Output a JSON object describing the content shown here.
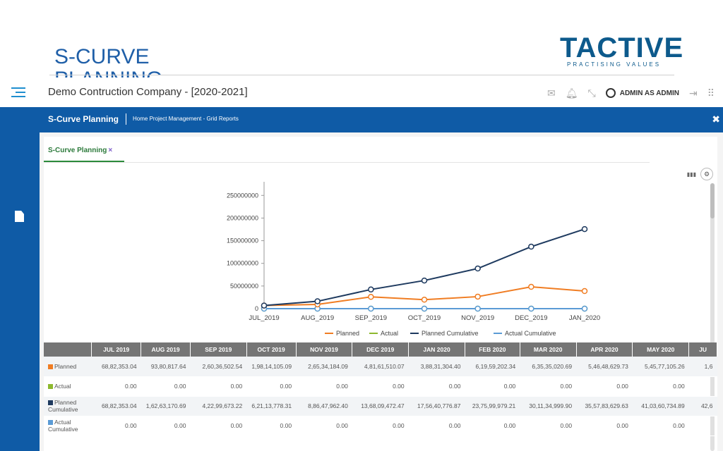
{
  "slide": {
    "title": "S-CURVE",
    "title_overflow": "PLANNING",
    "logo_text": "TACTIVE",
    "logo_tagline": "PRACTISING VALUES"
  },
  "appbar": {
    "company": "Demo Contruction Company - [2020-2021]",
    "user": "ADMIN AS ADMIN"
  },
  "band": {
    "title": "S-Curve Planning",
    "breadcrumb": "Home Project Management - Grid Reports"
  },
  "tab": {
    "label": "S-Curve Planning",
    "close": "×"
  },
  "colors": {
    "planned": "#f07d23",
    "actual": "#8db92e",
    "planned_cumulative": "#1e3a5f",
    "actual_cumulative": "#5b9bd5",
    "brand": "#0f5ba6"
  },
  "chart_data": {
    "type": "line",
    "categories": [
      "JUL_2019",
      "AUG_2019",
      "SEP_2019",
      "OCT_2019",
      "NOV_2019",
      "DEC_2019",
      "JAN_2020"
    ],
    "ytick_labels": [
      "0",
      "50000000",
      "100000000",
      "150000000",
      "200000000",
      "250000000"
    ],
    "ylim": [
      0,
      280000000
    ],
    "series": [
      {
        "name": "Planned",
        "values": [
          6882353,
          9380818,
          26036503,
          19814105,
          26534184,
          48161510,
          38831304
        ]
      },
      {
        "name": "Actual",
        "values": [
          0,
          0,
          0,
          0,
          0,
          0,
          0
        ]
      },
      {
        "name": "Planned Cumulative",
        "values": [
          6882353,
          16263171,
          42299673,
          62113778,
          88647962,
          136809472,
          175640777
        ]
      },
      {
        "name": "Actual Cumulative",
        "values": [
          0,
          0,
          0,
          0,
          0,
          0,
          0
        ]
      }
    ],
    "legend_position": "bottom"
  },
  "table": {
    "headers": [
      "",
      "JUL 2019",
      "AUG 2019",
      "SEP 2019",
      "OCT 2019",
      "NOV 2019",
      "DEC 2019",
      "JAN 2020",
      "FEB 2020",
      "MAR 2020",
      "APR 2020",
      "MAY 2020",
      "JU"
    ],
    "rows": [
      {
        "label": "Planned",
        "color": "#f07d23",
        "cells": [
          "68,82,353.04",
          "93,80,817.64",
          "2,60,36,502.54",
          "1,98,14,105.09",
          "2,65,34,184.09",
          "4,81,61,510.07",
          "3,88,31,304.40",
          "6,19,59,202.34",
          "6,35,35,020.69",
          "5,46,48,629.73",
          "5,45,77,105.26",
          "1,6"
        ]
      },
      {
        "label": "Actual",
        "color": "#8db92e",
        "cells": [
          "0.00",
          "0.00",
          "0.00",
          "0.00",
          "0.00",
          "0.00",
          "0.00",
          "0.00",
          "0.00",
          "0.00",
          "0.00",
          ""
        ]
      },
      {
        "label": "Planned Cumulative",
        "color": "#1e3a5f",
        "cells": [
          "68,82,353.04",
          "1,62,63,170.69",
          "4,22,99,673.22",
          "6,21,13,778.31",
          "8,86,47,962.40",
          "13,68,09,472.47",
          "17,56,40,776.87",
          "23,75,99,979.21",
          "30,11,34,999.90",
          "35,57,83,629.63",
          "41,03,60,734.89",
          "42,6"
        ]
      },
      {
        "label": "Actual Cumulative",
        "color": "#5b9bd5",
        "cells": [
          "0.00",
          "0.00",
          "0.00",
          "0.00",
          "0.00",
          "0.00",
          "0.00",
          "0.00",
          "0.00",
          "0.00",
          "0.00",
          ""
        ]
      }
    ]
  }
}
